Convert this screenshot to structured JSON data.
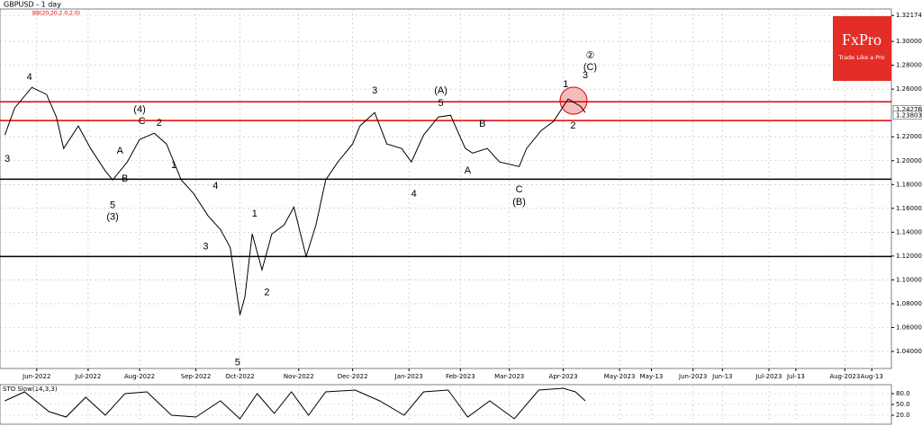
{
  "chart_data": [
    {
      "type": "line",
      "title": "GBPUSD - 1 day",
      "subtitle": "BB(20,20,2.0,2.0)",
      "x": [
        -13,
        -9,
        -2,
        4,
        8,
        11,
        17,
        22,
        28,
        31,
        37,
        42,
        48,
        53,
        59,
        64,
        70,
        75,
        79,
        83,
        85,
        88,
        92,
        96,
        101,
        105,
        110,
        114,
        118,
        123,
        129,
        132,
        138,
        143,
        149,
        153,
        158,
        164,
        169,
        175,
        178,
        184,
        189,
        197,
        200,
        206,
        211,
        217,
        222,
        224
      ],
      "series": [
        {
          "color": "#000000",
          "values": [
            1.2215,
            1.2442,
            1.2615,
            1.2555,
            1.2366,
            1.2102,
            1.2291,
            1.2102,
            1.1913,
            1.1838,
            1.1989,
            1.2177,
            1.223,
            1.214,
            1.1838,
            1.1725,
            1.1536,
            1.1423,
            1.1272,
            1.0706,
            1.0857,
            1.1385,
            1.1083,
            1.1385,
            1.146,
            1.1611,
            1.1196,
            1.146,
            1.1838,
            1.1989,
            1.214,
            1.2291,
            1.2404,
            1.214,
            1.2102,
            1.1989,
            1.2215,
            1.2366,
            1.2381,
            1.2102,
            1.2064,
            1.2102,
            1.1989,
            1.1951,
            1.2102,
            1.2253,
            1.2328,
            1.2517,
            1.2457,
            1.2404
          ]
        }
      ],
      "xlim": [
        -15,
        349
      ],
      "xticks": [
        {
          "value": 0,
          "label": "Jun-2022"
        },
        {
          "value": 21,
          "label": "Jul-2022"
        },
        {
          "value": 42,
          "label": "Aug-2022"
        },
        {
          "value": 65,
          "label": "Sep-2022"
        },
        {
          "value": 83,
          "label": "Oct-2022"
        },
        {
          "value": 107,
          "label": "Nov-2022"
        },
        {
          "value": 129,
          "label": "Dec-2022"
        },
        {
          "value": 152,
          "label": "Jan-2023"
        },
        {
          "value": 173,
          "label": "Feb-2023"
        },
        {
          "value": 193,
          "label": "Mar-2023"
        },
        {
          "value": 215,
          "label": "Apr-2023"
        },
        {
          "value": 238,
          "label": "May-2023"
        },
        {
          "value": 251,
          "label": "May-13"
        },
        {
          "value": 268,
          "label": "Jun-2023"
        },
        {
          "value": 280,
          "label": "Jun-13"
        },
        {
          "value": 299,
          "label": "Jul-2023"
        },
        {
          "value": 310,
          "label": "Jul-13"
        },
        {
          "value": 330,
          "label": "Aug-2023"
        },
        {
          "value": 341,
          "label": "Aug-13"
        }
      ],
      "ylim": [
        1.0257,
        1.3272
      ],
      "yticks": [
        {
          "value": 1.32174,
          "label": "1.32174"
        },
        {
          "value": 1.3,
          "label": "1.30000"
        },
        {
          "value": 1.28,
          "label": "1.28000"
        },
        {
          "value": 1.26,
          "label": "1.26000"
        },
        {
          "value": 1.22,
          "label": "1.22000"
        },
        {
          "value": 1.2,
          "label": "1.20000"
        },
        {
          "value": 1.18,
          "label": "1.18000"
        },
        {
          "value": 1.16,
          "label": "1.16000"
        },
        {
          "value": 1.14,
          "label": "1.14000"
        },
        {
          "value": 1.12,
          "label": "1.12000"
        },
        {
          "value": 1.1,
          "label": "1.10000"
        },
        {
          "value": 1.08,
          "label": "1.08000"
        },
        {
          "value": 1.06,
          "label": "1.06000"
        },
        {
          "value": 1.04,
          "label": "1.04000"
        }
      ],
      "price_labels": [
        {
          "value": 1.24276,
          "label": "1.24276"
        },
        {
          "value": 1.23803,
          "label": "1.23803"
        }
      ],
      "levels": [
        {
          "value": 1.2494,
          "color": "#e00000"
        },
        {
          "value": 1.2336,
          "color": "#e00000"
        },
        {
          "value": 1.1845,
          "color": "#000000"
        },
        {
          "value": 1.1196,
          "color": "#000000"
        }
      ],
      "annotations": [
        {
          "text": "4",
          "x": -3,
          "y": 1.2698
        },
        {
          "text": "(4)",
          "x": 42,
          "y": 1.2426
        },
        {
          "text": "C",
          "x": 43,
          "y": 1.2328
        },
        {
          "text": "2",
          "x": 50,
          "y": 1.2313
        },
        {
          "text": "A",
          "x": 34,
          "y": 1.2079
        },
        {
          "text": "B",
          "x": 36,
          "y": 1.1845
        },
        {
          "text": "1",
          "x": 56,
          "y": 1.1958
        },
        {
          "text": "5",
          "x": 31,
          "y": 1.1626
        },
        {
          "text": "(3)",
          "x": 31,
          "y": 1.1528
        },
        {
          "text": "3",
          "x": -12,
          "y": 1.2011
        },
        {
          "text": "4",
          "x": 73,
          "y": 1.1785
        },
        {
          "text": "3",
          "x": 69,
          "y": 1.1279
        },
        {
          "text": "5",
          "x": 82,
          "y": 1.0306
        },
        {
          "text": "1",
          "x": 89,
          "y": 1.1551
        },
        {
          "text": "2",
          "x": 94,
          "y": 1.0894
        },
        {
          "text": "3",
          "x": 138,
          "y": 1.2585
        },
        {
          "text": "4",
          "x": 154,
          "y": 1.1717
        },
        {
          "text": "(A)",
          "x": 165,
          "y": 1.2585
        },
        {
          "text": "5",
          "x": 165,
          "y": 1.2479
        },
        {
          "text": "B",
          "x": 182,
          "y": 1.2306
        },
        {
          "text": "A",
          "x": 176,
          "y": 1.1913
        },
        {
          "text": "C",
          "x": 197,
          "y": 1.1755
        },
        {
          "text": "(B)",
          "x": 197,
          "y": 1.1649
        },
        {
          "text": "1",
          "x": 216,
          "y": 1.2638
        },
        {
          "text": "2",
          "x": 219,
          "y": 1.2291
        },
        {
          "text": "3",
          "x": 224,
          "y": 1.2713
        },
        {
          "text": "(C)",
          "x": 226,
          "y": 1.2781
        },
        {
          "text": "②",
          "x": 226,
          "y": 1.2879
        }
      ],
      "grid": true
    },
    {
      "type": "line",
      "title": "STO Slow(14,3,3)",
      "x": [
        -13,
        -5,
        5,
        12,
        20,
        28,
        36,
        45,
        55,
        65,
        75,
        83,
        90,
        97,
        104,
        111,
        118,
        130,
        140,
        150,
        158,
        168,
        176,
        185,
        195,
        205,
        215,
        220,
        224
      ],
      "series": [
        {
          "color": "#000000",
          "values": [
            60,
            85,
            30,
            15,
            70,
            20,
            80,
            85,
            20,
            15,
            60,
            10,
            80,
            25,
            85,
            20,
            85,
            90,
            60,
            20,
            85,
            90,
            15,
            60,
            10,
            90,
            95,
            85,
            60
          ]
        }
      ],
      "xlim": [
        -15,
        349
      ],
      "ylim": [
        0,
        100
      ],
      "yticks": [
        {
          "value": 80,
          "label": "80.0"
        },
        {
          "value": 50,
          "label": "50.0"
        },
        {
          "value": 20,
          "label": "20.0"
        }
      ],
      "grid": true
    }
  ],
  "logo": {
    "name": "FxPro",
    "tagline": "Trade Like a Pro"
  }
}
